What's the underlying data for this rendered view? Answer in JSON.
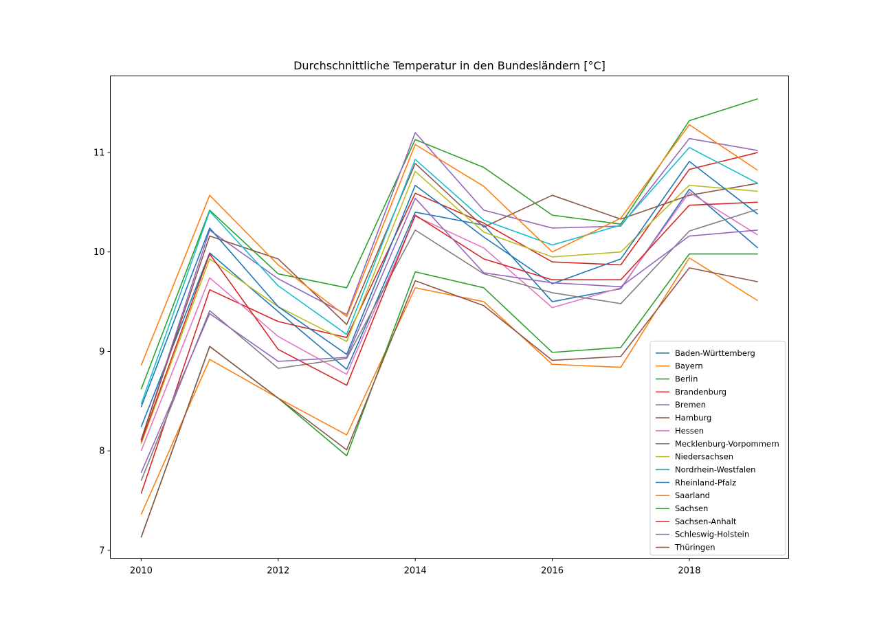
{
  "chart_data": {
    "type": "line",
    "title": "Durchschnittliche Temperatur in den Bundesländern [°C]",
    "xlabel": "",
    "ylabel": "",
    "x": [
      2010,
      2011,
      2012,
      2013,
      2014,
      2015,
      2016,
      2017,
      2018,
      2019
    ],
    "xticks": [
      "2010",
      "2012",
      "2014",
      "2016",
      "2018"
    ],
    "yticks": [
      "7",
      "8",
      "9",
      "10",
      "11"
    ],
    "xlim": [
      2009.55,
      2019.45
    ],
    "ylim": [
      6.92,
      11.77
    ],
    "grid": false,
    "legend_position": "bottom-right",
    "series": [
      {
        "name": "Baden-Württemberg",
        "color": "#1f77b4",
        "values": [
          8.24,
          9.99,
          9.4,
          8.82,
          10.4,
          10.27,
          9.5,
          9.63,
          10.63,
          10.04
        ]
      },
      {
        "name": "Bayern",
        "color": "#ff7f0e",
        "values": [
          7.36,
          8.92,
          8.53,
          8.16,
          9.64,
          9.5,
          8.87,
          8.84,
          9.94,
          9.51
        ]
      },
      {
        "name": "Berlin",
        "color": "#2ca02c",
        "values": [
          8.62,
          10.42,
          9.78,
          9.64,
          11.13,
          10.85,
          10.37,
          10.28,
          11.32,
          11.54
        ]
      },
      {
        "name": "Brandenburg",
        "color": "#d62728",
        "values": [
          7.57,
          9.62,
          9.3,
          9.14,
          10.59,
          10.29,
          9.9,
          9.87,
          10.83,
          11.0
        ]
      },
      {
        "name": "Bremen",
        "color": "#9467bd",
        "values": [
          8.11,
          10.22,
          9.73,
          9.37,
          11.2,
          10.42,
          10.24,
          10.26,
          11.14,
          11.02
        ]
      },
      {
        "name": "Hamburg",
        "color": "#8c564b",
        "values": [
          8.11,
          10.16,
          9.93,
          9.27,
          10.89,
          10.25,
          10.57,
          10.33,
          10.57,
          10.69
        ]
      },
      {
        "name": "Hessen",
        "color": "#e377c2",
        "values": [
          8.0,
          9.74,
          9.15,
          8.77,
          10.36,
          10.04,
          9.44,
          9.64,
          10.6,
          10.17
        ]
      },
      {
        "name": "Mecklenburg-Vorpommern",
        "color": "#7f7f7f",
        "values": [
          7.7,
          9.41,
          8.83,
          8.93,
          10.22,
          9.78,
          9.59,
          9.48,
          10.21,
          10.43
        ]
      },
      {
        "name": "Niedersachsen",
        "color": "#bcbd22",
        "values": [
          8.07,
          9.93,
          9.45,
          9.1,
          10.81,
          10.2,
          9.95,
          10.0,
          10.67,
          10.61
        ]
      },
      {
        "name": "Nordrhein-Westfalen",
        "color": "#17becf",
        "values": [
          8.47,
          10.41,
          9.66,
          9.17,
          10.93,
          10.32,
          10.07,
          10.27,
          11.05,
          10.69
        ]
      },
      {
        "name": "Rheinland-Pfalz",
        "color": "#1f77b4",
        "values": [
          8.44,
          10.24,
          9.45,
          8.97,
          10.67,
          10.15,
          9.68,
          9.93,
          10.91,
          10.38
        ]
      },
      {
        "name": "Saarland",
        "color": "#ff7f0e",
        "values": [
          8.86,
          10.57,
          9.87,
          9.35,
          11.08,
          10.66,
          10.0,
          10.34,
          11.28,
          10.82
        ]
      },
      {
        "name": "Sachsen",
        "color": "#2ca02c",
        "values": [
          7.13,
          9.05,
          8.53,
          7.95,
          9.8,
          9.64,
          8.99,
          9.04,
          9.98,
          9.98
        ]
      },
      {
        "name": "Sachsen-Anhalt",
        "color": "#d62728",
        "values": [
          8.09,
          9.98,
          9.02,
          8.66,
          10.37,
          9.93,
          9.72,
          9.72,
          10.47,
          10.5
        ]
      },
      {
        "name": "Schleswig-Holstein",
        "color": "#9467bd",
        "values": [
          7.78,
          9.38,
          8.9,
          8.94,
          10.54,
          9.79,
          9.69,
          9.65,
          10.16,
          10.22
        ]
      },
      {
        "name": "Thüringen",
        "color": "#8c564b",
        "values": [
          7.13,
          9.05,
          8.53,
          8.01,
          9.71,
          9.46,
          8.91,
          8.95,
          9.84,
          9.7
        ]
      }
    ]
  }
}
